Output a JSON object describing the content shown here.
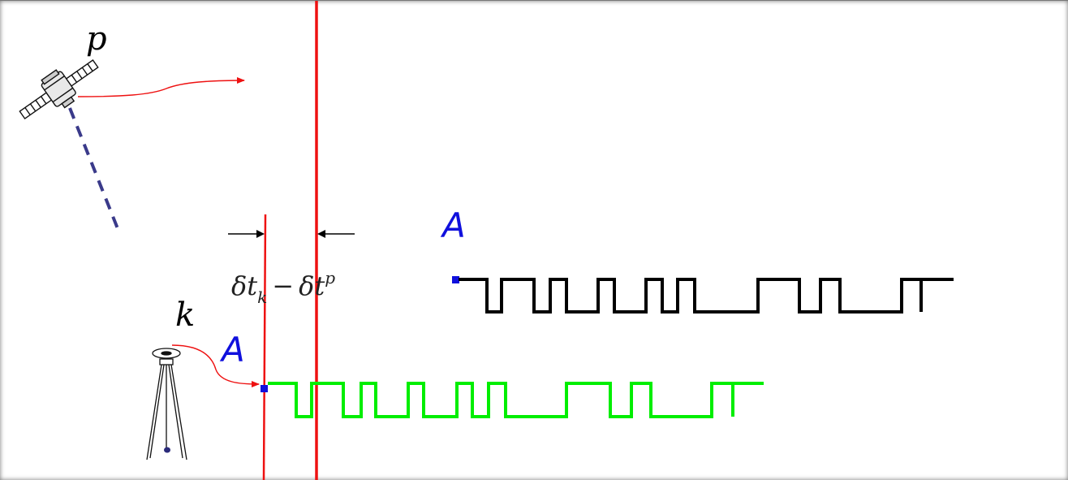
{
  "satellite": {
    "label": "p",
    "icon": "satellite-icon"
  },
  "receiver": {
    "label": "k",
    "icon": "tripod-receiver-icon"
  },
  "signals": {
    "satellite_code_label": "A",
    "receiver_code_label": "A",
    "satellite_code_color": "#000000",
    "receiver_code_color": "#00ee00",
    "label_color": "#1010dd"
  },
  "offset": {
    "delta_symbol": "δ",
    "receiver_term": "t",
    "receiver_subscript": "k",
    "minus": "−",
    "satellite_term": "t",
    "satellite_superscript": "p"
  },
  "colors": {
    "epoch_line": "#ee1111",
    "arrow": "#ee1111",
    "line_of_sight": "#3a3a8a"
  }
}
